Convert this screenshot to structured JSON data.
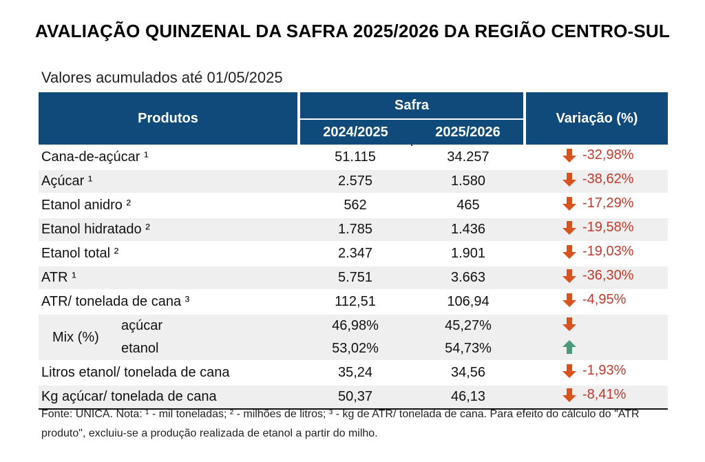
{
  "title": "AVALIAÇÃO QUINZENAL DA SAFRA 2025/2026 DA REGIÃO CENTRO-SUL",
  "subtitle": "Valores acumulados até 01/05/2025",
  "header": {
    "produtos": "Produtos",
    "safra": "Safra",
    "year_a": "2024/2025",
    "year_b": "2025/2026",
    "variacao": "Variação (%)"
  },
  "colors": {
    "header_bg": "#104a7a",
    "down": "#d9531e",
    "up": "#4a9a7a",
    "negative_text": "#c0392b"
  },
  "rows": [
    {
      "produto": "Cana-de-açúcar ¹",
      "a": "51.115",
      "b": "34.257",
      "trend": "down",
      "var": "-32,98%"
    },
    {
      "produto": "Açúcar ¹",
      "a": "2.575",
      "b": "1.580",
      "trend": "down",
      "var": "-38,62%"
    },
    {
      "produto": "Etanol anidro ²",
      "a": "562",
      "b": "465",
      "trend": "down",
      "var": "-17,29%"
    },
    {
      "produto": "Etanol hidratado ²",
      "a": "1.785",
      "b": "1.436",
      "trend": "down",
      "var": "-19,58%"
    },
    {
      "produto": "Etanol total ²",
      "a": "2.347",
      "b": "1.901",
      "trend": "down",
      "var": "-19,03%"
    },
    {
      "produto": "ATR ¹",
      "a": "5.751",
      "b": "3.663",
      "trend": "down",
      "var": "-36,30%"
    },
    {
      "produto": "ATR/ tonelada de cana ³",
      "a": "112,51",
      "b": "106,94",
      "trend": "down",
      "var": "-4,95%"
    }
  ],
  "mix": {
    "label": "Mix (%)",
    "items": [
      {
        "name": "açúcar",
        "a": "46,98%",
        "b": "45,27%",
        "trend": "down"
      },
      {
        "name": "etanol",
        "a": "53,02%",
        "b": "54,73%",
        "trend": "up"
      }
    ]
  },
  "rows_tail": [
    {
      "produto": "Litros etanol/ tonelada de cana",
      "a": "35,24",
      "b": "34,56",
      "trend": "down",
      "var": "-1,93%"
    },
    {
      "produto": "Kg açúcar/ tonelada de cana",
      "a": "50,37",
      "b": "46,13",
      "trend": "down",
      "var": "-8,41%"
    }
  ],
  "footnote": "Fonte: UNICA. Nota: ¹ - mil toneladas; ² - milhões de litros; ³ - kg de ATR/ tonelada de cana. Para efeito do cálculo do \"ATR produto\", excluiu-se a produção realizada de etanol a partir do milho."
}
